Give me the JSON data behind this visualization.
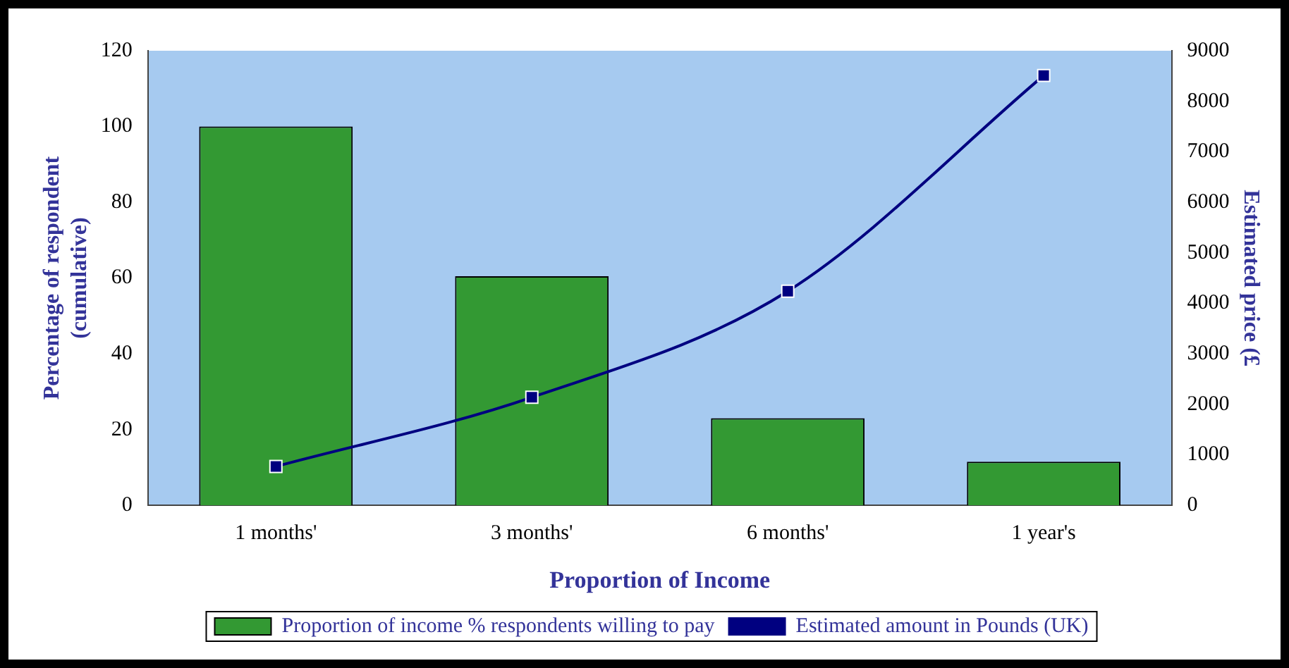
{
  "chart_data": {
    "type": "bar",
    "xlabel": "Proportion of Income",
    "ylabel": "Percentage of respondent\n(cumulative)",
    "y2label": "Estimated price (£",
    "categories": [
      "1 months'",
      "3 months'",
      "6 months'",
      "1 year's"
    ],
    "series": [
      {
        "name": "Proportion of income % respondents willing to pay",
        "color": "#339933",
        "values": [
          100,
          60.5,
          23,
          11.5
        ]
      },
      {
        "name": "Estimated amount in Pounds (UK)",
        "type": "line",
        "axis": "y2",
        "color": "#000080",
        "marker": "square",
        "values": [
          770,
          2140,
          4240,
          8510
        ]
      }
    ],
    "ylim": [
      0,
      120
    ],
    "yticks": [
      0,
      20,
      40,
      60,
      80,
      100,
      120
    ],
    "y2lim": [
      0,
      9000
    ],
    "y2ticks": [
      0,
      1000,
      2000,
      3000,
      4000,
      5000,
      6000,
      7000,
      8000,
      9000
    ],
    "grid": false,
    "legend": "bottom"
  }
}
